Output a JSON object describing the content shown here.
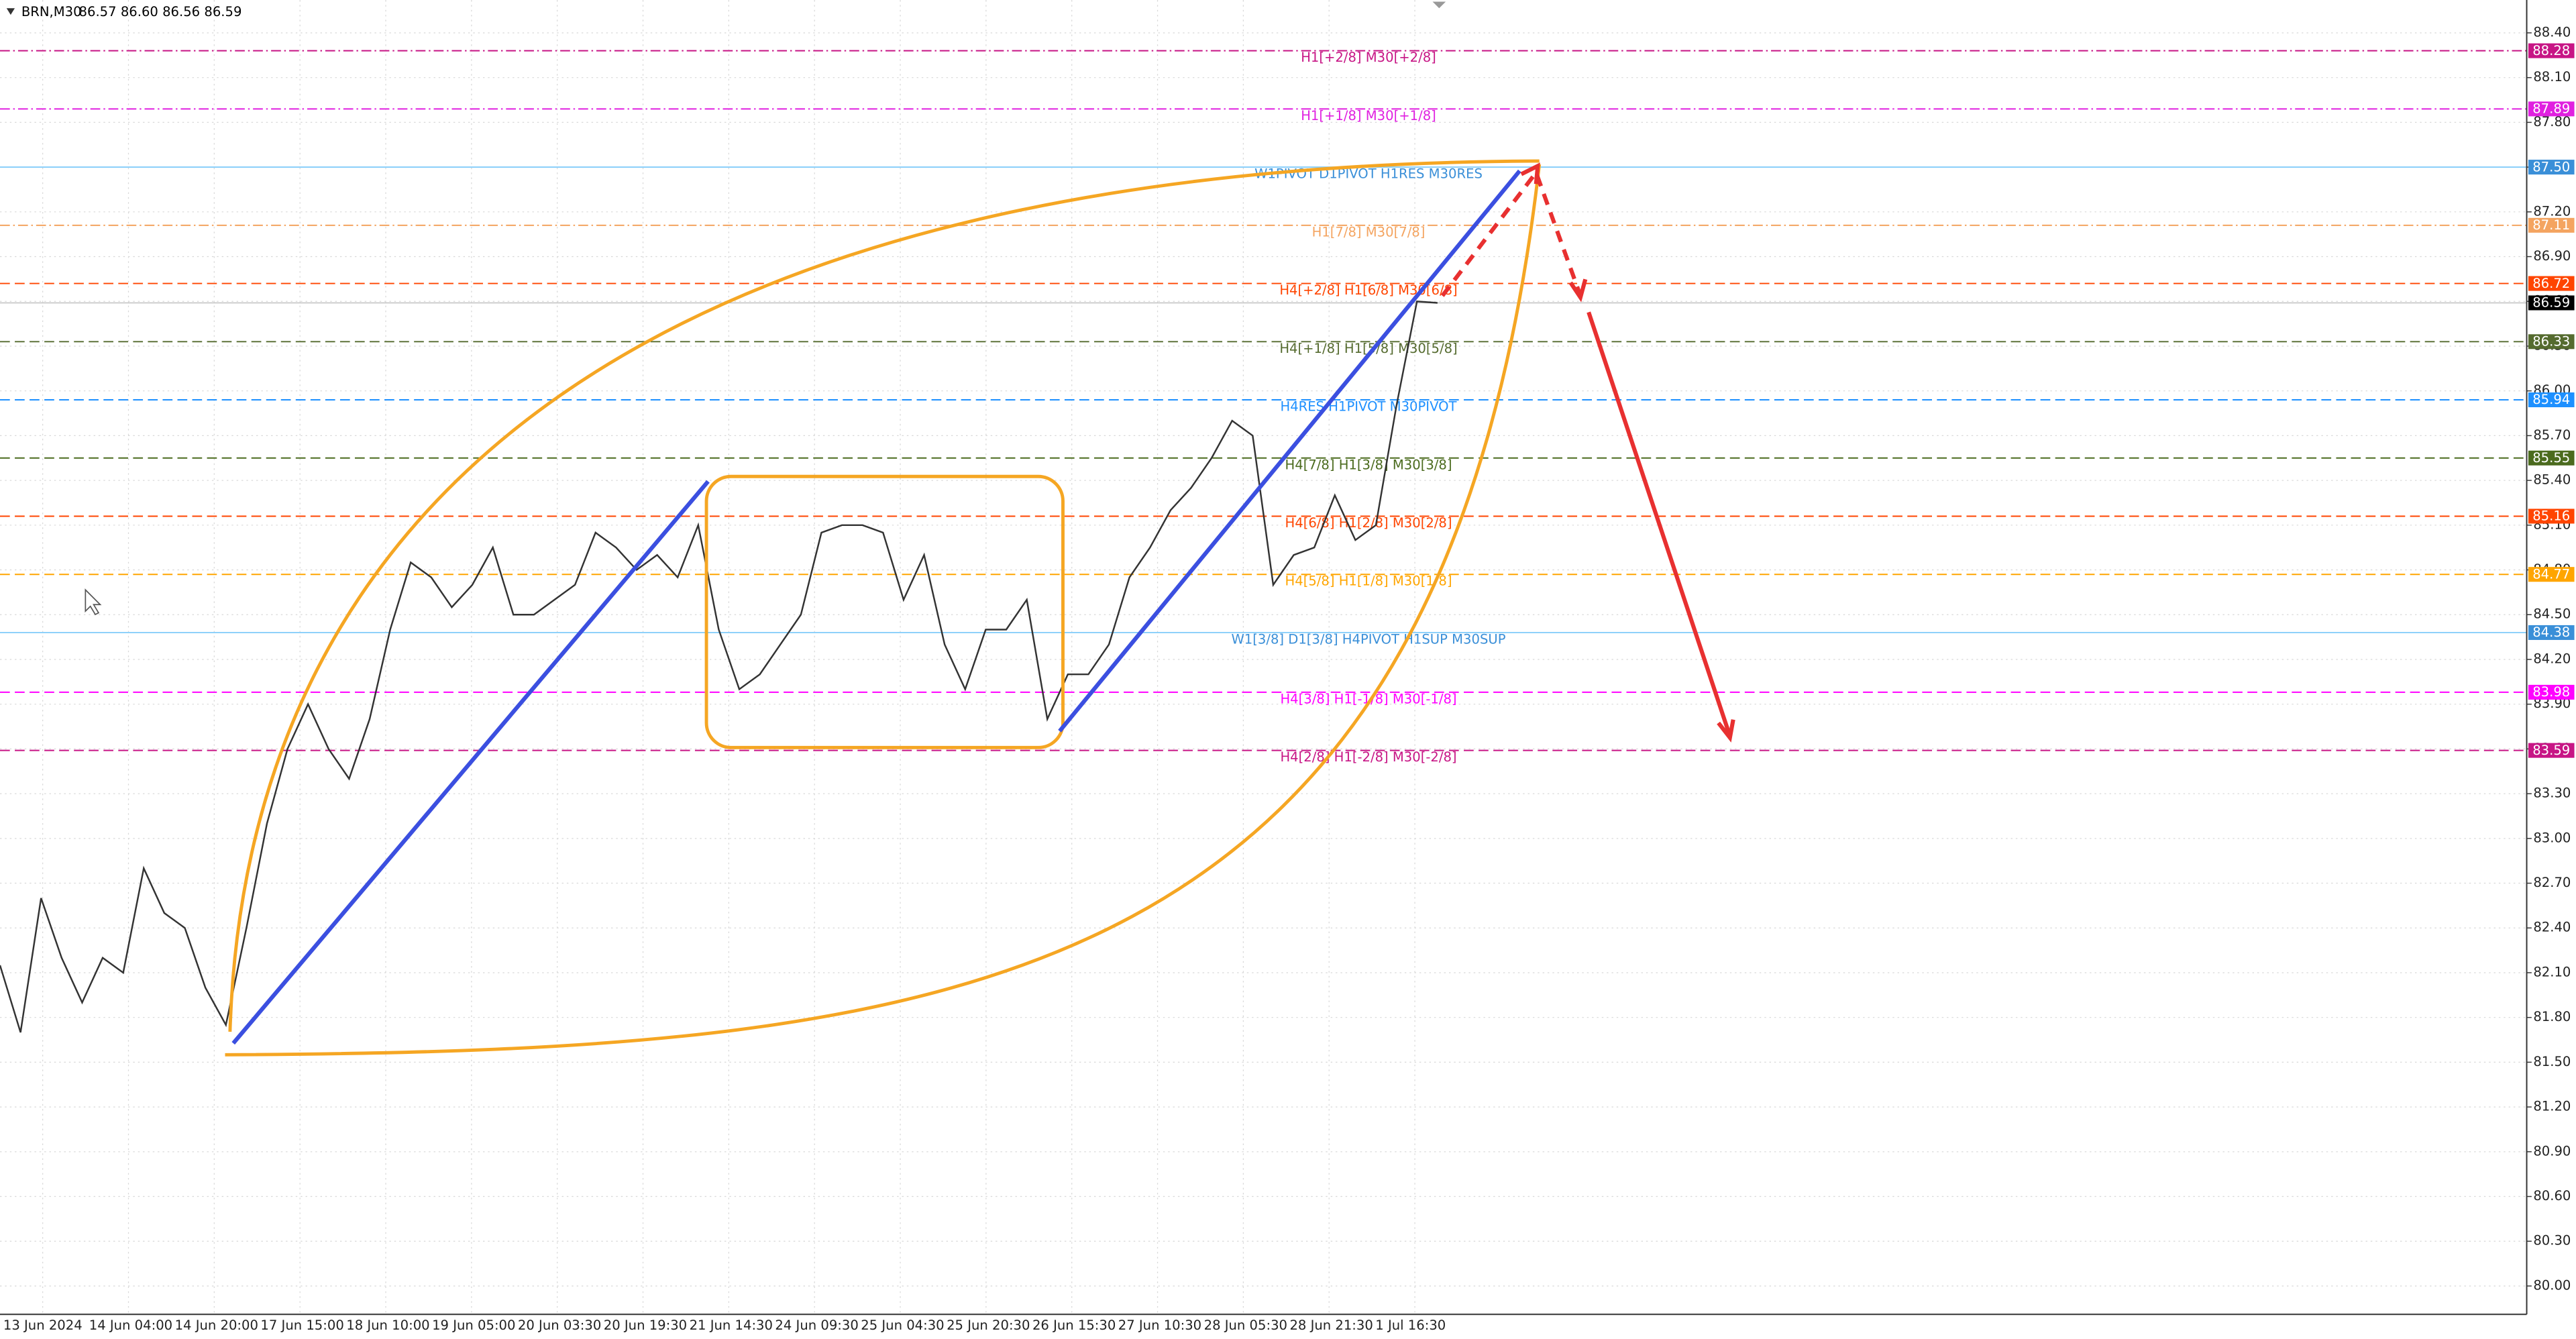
{
  "chart_data": {
    "type": "line",
    "title": "BRN,M30",
    "subtitle": "86.57 86.60 86.56 86.59",
    "xticks": [
      "13 Jun 2024",
      "14 Jun 04:00",
      "14 Jun 20:00",
      "17 Jun 15:00",
      "18 Jun 10:00",
      "19 Jun 05:00",
      "20 Jun 03:30",
      "20 Jun 19:30",
      "21 Jun 14:30",
      "24 Jun 09:30",
      "25 Jun 04:30",
      "25 Jun 20:30",
      "26 Jun 15:30",
      "27 Jun 10:30",
      "28 Jun 05:30",
      "28 Jun 21:30",
      "1 Jul 16:30"
    ],
    "values": [
      82.15,
      81.7,
      82.6,
      82.2,
      81.9,
      82.2,
      82.1,
      82.8,
      82.5,
      82.4,
      82.0,
      81.75,
      82.4,
      83.1,
      83.6,
      83.9,
      83.6,
      83.4,
      83.8,
      84.4,
      84.85,
      84.75,
      84.55,
      84.7,
      84.95,
      84.5,
      84.5,
      84.6,
      84.7,
      85.05,
      84.95,
      84.8,
      84.9,
      84.75,
      85.1,
      84.4,
      84.0,
      84.1,
      84.3,
      84.5,
      85.05,
      85.1,
      85.1,
      85.05,
      84.6,
      84.9,
      84.3,
      84.0,
      84.4,
      84.4,
      84.6,
      83.8,
      84.1,
      84.1,
      84.3,
      84.75,
      84.95,
      85.2,
      85.35,
      85.55,
      85.8,
      85.7,
      84.7,
      84.9,
      84.95,
      85.3,
      85.0,
      85.1,
      85.9,
      86.6,
      86.59
    ],
    "color": "#333333",
    "ylim": [
      79.81,
      88.62
    ],
    "yticks": [
      {
        "value": 80.0,
        "label": "80.00"
      },
      {
        "value": 80.3,
        "label": "80.30"
      },
      {
        "value": 80.6,
        "label": "80.60"
      },
      {
        "value": 80.9,
        "label": "80.90"
      },
      {
        "value": 81.2,
        "label": "81.20"
      },
      {
        "value": 81.5,
        "label": "81.50"
      },
      {
        "value": 81.8,
        "label": "81.80"
      },
      {
        "value": 82.1,
        "label": "82.10"
      },
      {
        "value": 82.4,
        "label": "82.40"
      },
      {
        "value": 82.7,
        "label": "82.70"
      },
      {
        "value": 83.0,
        "label": "83.00"
      },
      {
        "value": 83.3,
        "label": "83.30"
      },
      {
        "value": 83.6,
        "label": "83.60"
      },
      {
        "value": 83.9,
        "label": "83.90"
      },
      {
        "value": 84.2,
        "label": "84.20"
      },
      {
        "value": 84.5,
        "label": "84.50"
      },
      {
        "value": 84.8,
        "label": "84.80"
      },
      {
        "value": 85.1,
        "label": "85.10"
      },
      {
        "value": 85.4,
        "label": "85.40"
      },
      {
        "value": 85.7,
        "label": "85.70"
      },
      {
        "value": 86.0,
        "label": "86.00"
      },
      {
        "value": 86.3,
        "label": "86.30"
      },
      {
        "value": 86.6,
        "label": "86.60"
      },
      {
        "value": 86.9,
        "label": "86.90"
      },
      {
        "value": 87.2,
        "label": "87.20"
      },
      {
        "value": 87.5,
        "label": "87.50"
      },
      {
        "value": 87.8,
        "label": "87.80"
      },
      {
        "value": 88.1,
        "label": "88.10"
      },
      {
        "value": 88.4,
        "label": "88.40"
      }
    ],
    "grid": true,
    "last": 86.59,
    "levels": {
      "names": [
        "H1[+2/8] M30[+2/8]",
        "H1[+1/8] M30[+1/8]",
        "W1PIVOT D1PIVOT H1RES M30RES",
        "H1[7/8] M30[7/8]",
        "H4[+2/8] H1[6/8] M30[6/8]",
        "H4[+1/8] H1[5/8] M30[5/8]",
        "H4RES H1PIVOT M30PIVOT",
        "H4[7/8] H1[3/8] M30[3/8]",
        "H4[6/8] H1[2/8] M30[2/8]",
        "H4[5/8] H1[1/8] M30[1/8]",
        "W1[3/8] D1[3/8] H4PIVOT H1SUP M30SUP",
        "H4[3/8] H1[-1/8] M30[-1/8]",
        "H4[2/8] H1[-2/8] M30[-2/8]"
      ],
      "values": [
        88.28,
        87.89,
        87.5,
        87.11,
        86.72,
        86.33,
        85.94,
        85.55,
        85.16,
        84.77,
        84.38,
        83.98,
        83.59
      ],
      "value_labels": [
        "88.28",
        "87.89",
        "87.50",
        "87.11",
        "86.72",
        "86.33",
        "85.94",
        "85.55",
        "85.16",
        "84.77",
        "84.38",
        "83.98",
        "83.59"
      ],
      "colors": [
        "#c71585",
        "#e020e0",
        "#3a8fd8",
        "#f4a460",
        "#ff4500",
        "#556b2f",
        "#1e90ff",
        "#4b6b1e",
        "#ff4500",
        "#ffa500",
        "#3a8fd8",
        "#ff00ff",
        "#c71585"
      ],
      "line_colors": [
        "#c71585",
        "#e020e0",
        "#87cefa",
        "#f4a460",
        "#ff4500",
        "#556b2f",
        "#1e90ff",
        "#4b6b1e",
        "#ff4500",
        "#ffa500",
        "#87cefa",
        "#ff00ff",
        "#c71585"
      ],
      "dashes": [
        "dashdot",
        "dashdot",
        "solid",
        "dashdot",
        "dashed",
        "dashed",
        "dashed",
        "dashed",
        "dashed",
        "dashed",
        "solid",
        "dashed",
        "dashed"
      ]
    }
  }
}
